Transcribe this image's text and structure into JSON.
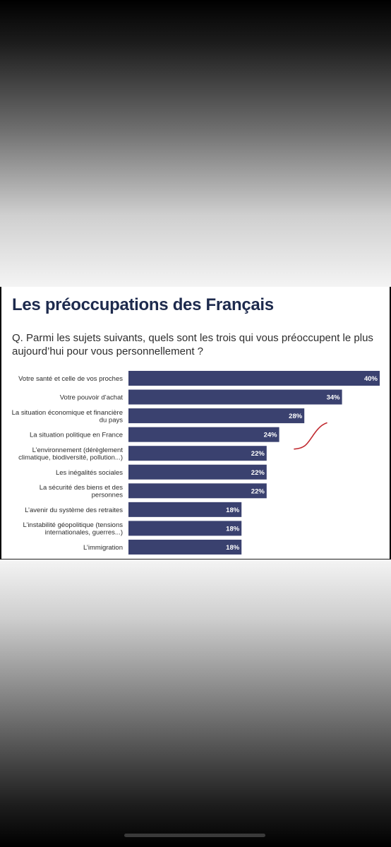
{
  "page": {
    "title": "Les préoccupations des Français",
    "question": "Q. Parmi les sujets suivants, quels sont les trois qui vous préoccupent le plus aujourd’hui pour vous personnellement ?"
  },
  "colors": {
    "bar": "#3a416f",
    "bar_label": "#ffffff",
    "category_text": "#2b2b2b",
    "title": "#1d2a4d",
    "annotation": "#c0282e"
  },
  "annotation": {
    "kind": "hand-drawn red curve",
    "near_category": "La situation politique en France"
  },
  "chart_data": {
    "type": "bar",
    "orientation": "horizontal",
    "title": "Les préoccupations des Français",
    "xlabel": "",
    "ylabel": "",
    "xlim": [
      0,
      40
    ],
    "grid": false,
    "legend": "none",
    "categories": [
      [
        "Votre santé et celle de vos proches"
      ],
      [
        "Votre pouvoir d’achat"
      ],
      [
        "La situation économique et financière",
        "du pays"
      ],
      [
        "La situation politique en France"
      ],
      [
        "L’environnement (dérèglement",
        "climatique, biodiversité, pollution...)"
      ],
      [
        "Les inégalités sociales"
      ],
      [
        "La sécurité des biens et des",
        "personnes"
      ],
      [
        "L’avenir du système des retraites"
      ],
      [
        "L’instabilité géopolitique (tensions",
        "internationales, guerres...)"
      ],
      [
        "L’immigration"
      ]
    ],
    "values": [
      40,
      34,
      28,
      24,
      22,
      22,
      22,
      18,
      18,
      18
    ],
    "value_labels": [
      "40%",
      "34%",
      "28%",
      "24%",
      "22%",
      "22%",
      "22%",
      "18%",
      "18%",
      "18%"
    ]
  }
}
